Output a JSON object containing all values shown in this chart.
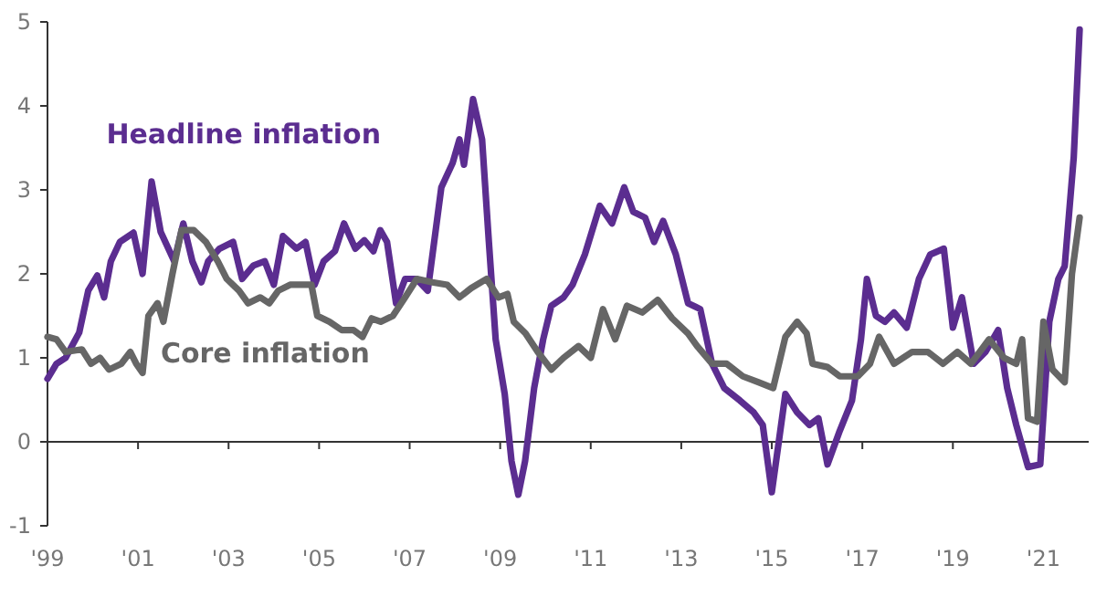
{
  "chart_data": {
    "type": "line",
    "xlim": [
      1999,
      2022
    ],
    "ylim": [
      -1,
      5
    ],
    "yticks": [
      -1,
      0,
      1,
      2,
      3,
      4,
      5
    ],
    "xticks": [
      {
        "value": 1999,
        "label": "'99"
      },
      {
        "value": 2001,
        "label": "'01"
      },
      {
        "value": 2003,
        "label": "'03"
      },
      {
        "value": 2005,
        "label": "'05"
      },
      {
        "value": 2007,
        "label": "'07"
      },
      {
        "value": 2009,
        "label": "'09"
      },
      {
        "value": 2011,
        "label": "'11"
      },
      {
        "value": 2013,
        "label": "'13"
      },
      {
        "value": 2015,
        "label": "'15"
      },
      {
        "value": 2017,
        "label": "'17"
      },
      {
        "value": 2019,
        "label": "'19"
      },
      {
        "value": 2021,
        "label": "'21"
      }
    ],
    "grid": false,
    "ref_lines": [
      {
        "axis": "y",
        "value": 0,
        "color": "#333333"
      }
    ],
    "legend": false,
    "line_style": "solid",
    "marker": "none",
    "series": [
      {
        "name": "Headline inflation",
        "color": "#5b2d90",
        "x": [
          1999.0,
          1999.2,
          1999.4,
          1999.7,
          1999.9,
          2000.1,
          2000.25,
          2000.4,
          2000.6,
          2000.9,
          2001.1,
          2001.3,
          2001.5,
          2001.8,
          2002.0,
          2002.2,
          2002.4,
          2002.55,
          2002.8,
          2003.1,
          2003.3,
          2003.55,
          2003.8,
          2004.0,
          2004.2,
          2004.5,
          2004.7,
          2004.9,
          2005.1,
          2005.35,
          2005.55,
          2005.8,
          2006.0,
          2006.2,
          2006.35,
          2006.5,
          2006.7,
          2006.9,
          2007.15,
          2007.4,
          2007.7,
          2007.95,
          2008.1,
          2008.2,
          2008.4,
          2008.6,
          2008.75,
          2008.9,
          2009.1,
          2009.25,
          2009.4,
          2009.55,
          2009.75,
          2009.95,
          2010.13,
          2010.4,
          2010.6,
          2010.87,
          2011.2,
          2011.47,
          2011.74,
          2011.94,
          2012.2,
          2012.4,
          2012.6,
          2012.88,
          2013.15,
          2013.42,
          2013.68,
          2013.95,
          2014.3,
          2014.6,
          2014.8,
          2015.0,
          2015.3,
          2015.56,
          2015.83,
          2016.03,
          2016.23,
          2016.5,
          2016.77,
          2016.97,
          2017.1,
          2017.3,
          2017.5,
          2017.7,
          2017.98,
          2018.25,
          2018.5,
          2018.8,
          2019.0,
          2019.2,
          2019.46,
          2019.72,
          2020.0,
          2020.2,
          2020.4,
          2020.66,
          2020.93,
          2021.13,
          2021.33,
          2021.47,
          2021.67,
          2021.8
        ],
        "values": [
          0.75,
          0.93,
          1.0,
          1.3,
          1.8,
          1.98,
          1.72,
          2.15,
          2.38,
          2.49,
          2.0,
          3.1,
          2.5,
          2.15,
          2.6,
          2.15,
          1.9,
          2.15,
          2.3,
          2.38,
          1.94,
          2.1,
          2.15,
          1.87,
          2.45,
          2.3,
          2.38,
          1.87,
          2.15,
          2.27,
          2.6,
          2.3,
          2.4,
          2.27,
          2.52,
          2.38,
          1.65,
          1.94,
          1.94,
          1.8,
          3.03,
          3.32,
          3.6,
          3.3,
          4.08,
          3.6,
          2.38,
          1.22,
          0.57,
          -0.23,
          -0.63,
          -0.23,
          0.64,
          1.22,
          1.62,
          1.72,
          1.87,
          2.23,
          2.81,
          2.6,
          3.03,
          2.74,
          2.67,
          2.38,
          2.63,
          2.23,
          1.65,
          1.58,
          0.93,
          0.64,
          0.49,
          0.35,
          0.2,
          -0.6,
          0.57,
          0.35,
          0.2,
          0.28,
          -0.27,
          0.13,
          0.49,
          1.22,
          1.94,
          1.5,
          1.43,
          1.54,
          1.36,
          1.94,
          2.23,
          2.3,
          1.36,
          1.72,
          0.93,
          1.07,
          1.33,
          0.64,
          0.2,
          -0.3,
          -0.27,
          1.43,
          1.94,
          2.09,
          3.39,
          4.91
        ]
      },
      {
        "name": "Core inflation",
        "color": "#666666",
        "x": [
          1999.0,
          1999.2,
          1999.4,
          1999.76,
          1999.96,
          2000.16,
          2000.36,
          2000.63,
          2000.83,
          2000.96,
          2001.1,
          2001.23,
          2001.43,
          2001.56,
          2001.76,
          2001.96,
          2002.23,
          2002.5,
          2002.76,
          2002.96,
          2003.23,
          2003.43,
          2003.7,
          2003.9,
          2004.1,
          2004.36,
          2004.63,
          2004.83,
          2004.96,
          2005.23,
          2005.5,
          2005.76,
          2005.96,
          2006.16,
          2006.36,
          2006.63,
          2006.9,
          2007.16,
          2007.5,
          2007.83,
          2008.1,
          2008.36,
          2008.7,
          2008.96,
          2009.16,
          2009.3,
          2009.56,
          2009.83,
          2010.13,
          2010.4,
          2010.73,
          2011.0,
          2011.27,
          2011.54,
          2011.8,
          2012.14,
          2012.48,
          2012.8,
          2013.15,
          2013.35,
          2013.68,
          2014.0,
          2014.36,
          2014.7,
          2015.03,
          2015.3,
          2015.56,
          2015.77,
          2015.9,
          2016.23,
          2016.5,
          2016.9,
          2017.17,
          2017.37,
          2017.7,
          2018.1,
          2018.45,
          2018.78,
          2019.1,
          2019.4,
          2019.8,
          2020.13,
          2020.4,
          2020.53,
          2020.66,
          2020.86,
          2021.0,
          2021.2,
          2021.47,
          2021.63,
          2021.8
        ],
        "values": [
          1.25,
          1.22,
          1.07,
          1.1,
          0.93,
          1.0,
          0.86,
          0.93,
          1.07,
          0.93,
          0.82,
          1.5,
          1.65,
          1.43,
          2.0,
          2.52,
          2.52,
          2.38,
          2.15,
          1.94,
          1.8,
          1.65,
          1.72,
          1.65,
          1.8,
          1.87,
          1.87,
          1.87,
          1.5,
          1.43,
          1.33,
          1.33,
          1.25,
          1.47,
          1.43,
          1.5,
          1.72,
          1.94,
          1.9,
          1.87,
          1.72,
          1.83,
          1.94,
          1.72,
          1.76,
          1.43,
          1.29,
          1.07,
          0.86,
          1.0,
          1.14,
          1.0,
          1.58,
          1.22,
          1.62,
          1.54,
          1.69,
          1.47,
          1.29,
          1.14,
          0.93,
          0.93,
          0.78,
          0.71,
          0.64,
          1.25,
          1.43,
          1.29,
          0.93,
          0.89,
          0.78,
          0.78,
          0.93,
          1.25,
          0.93,
          1.07,
          1.07,
          0.93,
          1.07,
          0.93,
          1.22,
          1.0,
          0.93,
          1.22,
          0.28,
          0.24,
          1.43,
          0.86,
          0.71,
          2.0,
          2.67
        ]
      }
    ]
  }
}
